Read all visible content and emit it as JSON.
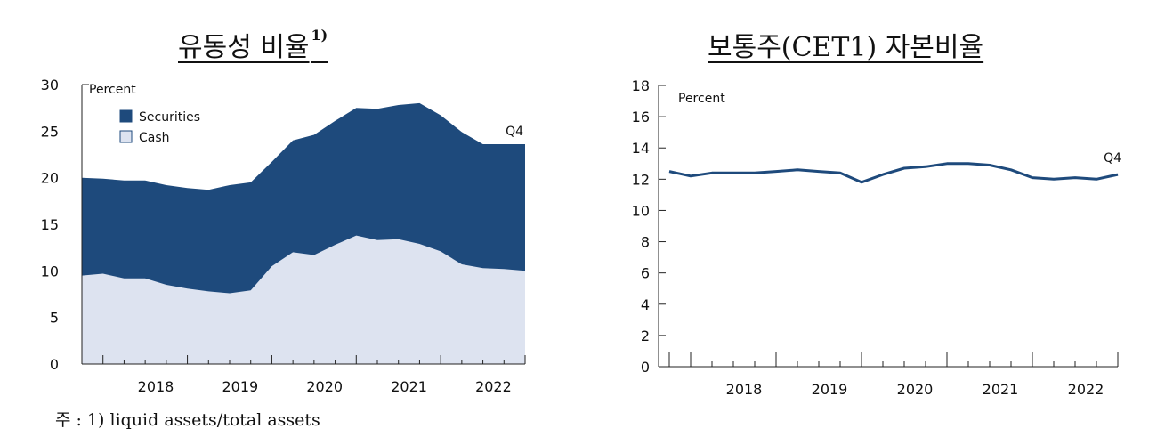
{
  "chart_data": [
    {
      "type": "area",
      "title": "유동성 비율",
      "title_superscript": "1)",
      "ylabel": "Percent",
      "ylim": [
        0,
        30
      ],
      "yticks": [
        0,
        5,
        10,
        15,
        20,
        25,
        30
      ],
      "xtick_labels": [
        "2018",
        "2019",
        "2020",
        "2021",
        "2022"
      ],
      "stacked": true,
      "end_label": "Q4",
      "legend_position": "top-left",
      "x": [
        "2017Q3",
        "2017Q4",
        "2018Q1",
        "2018Q2",
        "2018Q3",
        "2018Q4",
        "2019Q1",
        "2019Q2",
        "2019Q3",
        "2019Q4",
        "2020Q1",
        "2020Q2",
        "2020Q3",
        "2020Q4",
        "2021Q1",
        "2021Q2",
        "2021Q3",
        "2021Q4",
        "2022Q1",
        "2022Q2",
        "2022Q3",
        "2022Q4"
      ],
      "series": [
        {
          "name": "Cash",
          "color": "#dde3f0",
          "values": [
            9.5,
            9.7,
            9.2,
            9.2,
            8.5,
            8.1,
            7.8,
            7.6,
            7.9,
            10.5,
            12.0,
            11.7,
            12.8,
            13.8,
            13.3,
            13.4,
            12.9,
            12.1,
            10.7,
            10.3,
            10.2,
            10.0
          ]
        },
        {
          "name": "Securities",
          "color": "#1e4a7c",
          "total_values": [
            20.0,
            19.9,
            19.7,
            19.7,
            19.2,
            18.9,
            18.7,
            19.2,
            19.5,
            21.7,
            24.0,
            24.6,
            26.1,
            27.5,
            27.4,
            27.8,
            28.0,
            26.7,
            24.9,
            23.6,
            23.6,
            23.6
          ]
        }
      ]
    },
    {
      "type": "line",
      "title": "보통주(CET1) 자본비율",
      "ylabel": "Percent",
      "ylim": [
        0,
        18
      ],
      "yticks": [
        0,
        2,
        4,
        6,
        8,
        10,
        12,
        14,
        16,
        18
      ],
      "xtick_labels": [
        "2018",
        "2019",
        "2020",
        "2021",
        "2022"
      ],
      "end_label": "Q4",
      "x": [
        "2017Q3",
        "2017Q4",
        "2018Q1",
        "2018Q2",
        "2018Q3",
        "2018Q4",
        "2019Q1",
        "2019Q2",
        "2019Q3",
        "2019Q4",
        "2020Q1",
        "2020Q2",
        "2020Q3",
        "2020Q4",
        "2021Q1",
        "2021Q2",
        "2021Q3",
        "2021Q4",
        "2022Q1",
        "2022Q2",
        "2022Q3",
        "2022Q4"
      ],
      "series": [
        {
          "color": "#1e4a7c",
          "values": [
            12.5,
            12.2,
            12.4,
            12.4,
            12.4,
            12.5,
            12.6,
            12.5,
            12.4,
            11.8,
            12.3,
            12.7,
            12.8,
            13.0,
            13.0,
            12.9,
            12.6,
            12.1,
            12.0,
            12.1,
            12.0,
            12.3
          ]
        }
      ]
    }
  ],
  "footnote": "주 : 1) liquid assets/total assets"
}
